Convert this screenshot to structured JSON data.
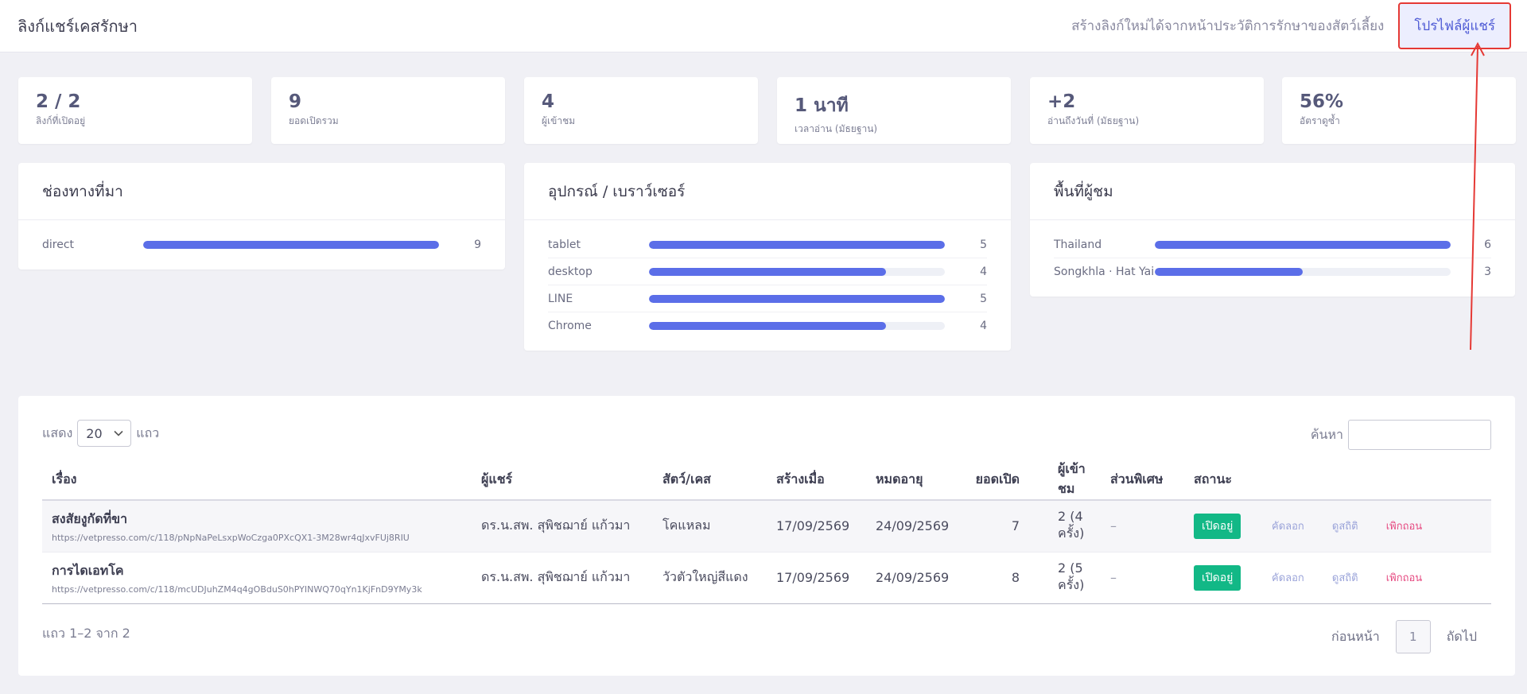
{
  "header": {
    "title": "ลิงก์แชร์เคสรักษา",
    "hint": "สร้างลิงก์ใหม่ได้จากหน้าประวัติการรักษาของสัตว์เลี้ยง",
    "profile_button": "โปรไฟล์ผู้แชร์"
  },
  "stats": [
    {
      "value": "2 / 2",
      "label": "ลิงก์ที่เปิดอยู่"
    },
    {
      "value": "9",
      "label": "ยอดเปิดรวม"
    },
    {
      "value": "4",
      "label": "ผู้เข้าชม"
    },
    {
      "value": "1 นาที",
      "label": "เวลาอ่าน (มัธยฐาน)"
    },
    {
      "value": "+2",
      "label": "อ่านถึงวันที่ (มัธยฐาน)"
    },
    {
      "value": "56%",
      "label": "อัตราดูซ้ำ"
    }
  ],
  "sources": {
    "title": "ช่องทางที่มา",
    "rows": [
      {
        "label": "direct",
        "value": "9",
        "fraction": 1.0
      }
    ]
  },
  "devices": {
    "title": "อุปกรณ์ / เบราว์เซอร์",
    "rows": [
      {
        "label": "tablet",
        "value": "5",
        "fraction": 1.0
      },
      {
        "label": "desktop",
        "value": "4",
        "fraction": 0.8
      },
      {
        "label": "LINE",
        "value": "5",
        "fraction": 1.0
      },
      {
        "label": "Chrome",
        "value": "4",
        "fraction": 0.8
      }
    ]
  },
  "regions": {
    "title": "พื้นที่ผู้ชม",
    "rows": [
      {
        "label": "Thailand",
        "value": "6",
        "fraction": 1.0
      },
      {
        "label": "Songkhla · Hat Yai",
        "value": "3",
        "fraction": 0.5
      }
    ]
  },
  "table": {
    "show_label": "แสดง",
    "page_size": "20",
    "rows_label": "แถว",
    "search_label": "ค้นหา",
    "headers": {
      "subject": "เรื่อง",
      "sharer": "ผู้แชร์",
      "pet": "สัตว์/เคส",
      "created": "สร้างเมื่อ",
      "expires": "หมดอายุ",
      "opens": "ยอดเปิด",
      "viewers": "ผู้เข้าชม",
      "extras": "ส่วนพิเศษ",
      "status": "สถานะ"
    },
    "rows": [
      {
        "subject": "สงสัยงูกัดที่ขา",
        "url": "https://vetpresso.com/c/118/pNpNaPeLsxpWoCzga0PXcQX1-3M28wr4qJxvFUj8RIU",
        "sharer": "ดร.น.สพ. สุพิชฌาย์ แก้วมา",
        "pet": "โคแหลม",
        "created": "17/09/2569",
        "expires": "24/09/2569",
        "opens": "7",
        "viewers": "2 (4 ครั้ง)",
        "extras": "–",
        "status": "เปิดอยู่",
        "copy": "คัดลอก",
        "stats": "ดูสถิติ",
        "revoke": "เพิกถอน"
      },
      {
        "subject": "การไดเอทโค",
        "url": "https://vetpresso.com/c/118/mcUDJuhZM4q4gOBduS0hPYINWQ70qYn1KjFnD9YMy3k",
        "sharer": "ดร.น.สพ. สุพิชฌาย์ แก้วมา",
        "pet": "วัวตัวใหญ่สีแดง",
        "created": "17/09/2569",
        "expires": "24/09/2569",
        "opens": "8",
        "viewers": "2 (5 ครั้ง)",
        "extras": "–",
        "status": "เปิดอยู่",
        "copy": "คัดลอก",
        "stats": "ดูสถิติ",
        "revoke": "เพิกถอน"
      }
    ],
    "footer_info": "แถว 1–2 จาก 2",
    "prev": "ก่อนหน้า",
    "page": "1",
    "next": "ถัดไป"
  },
  "colors": {
    "accent": "#5b6ee8",
    "status_green": "#12b886",
    "danger": "#e64980",
    "annotation_red": "#e53935"
  }
}
